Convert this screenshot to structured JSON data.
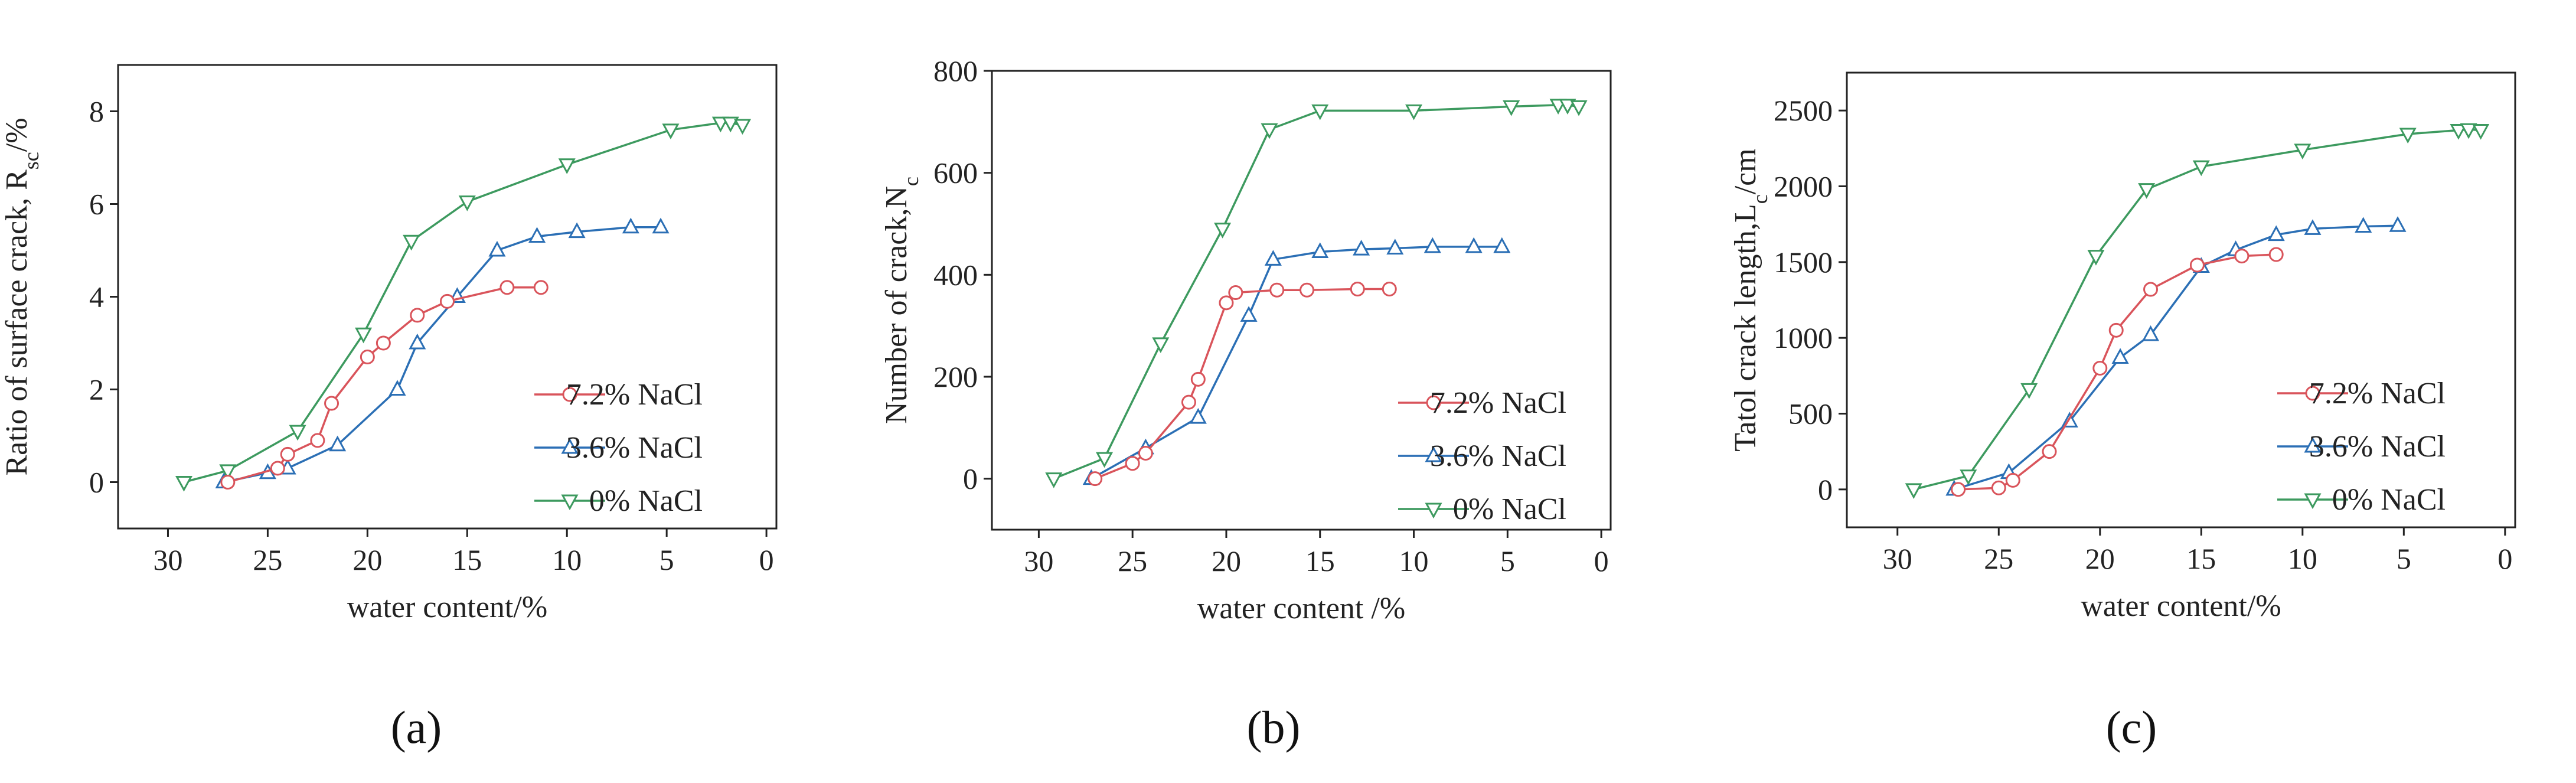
{
  "colors": {
    "red": "#d9545b",
    "blue": "#2b6fb5",
    "green": "#3d9a5f"
  },
  "chart_data": [
    {
      "type": "line",
      "panel_label": "(a)",
      "xlabel": "water content/%",
      "ylabel": "Ratio of surface crack,  R",
      "ylabel_sub": "sc",
      "ylabel_suffix": "/%",
      "xlim": [
        32.5,
        -0.5
      ],
      "ylim": [
        -1,
        9
      ],
      "xticks": [
        30,
        25,
        20,
        15,
        10,
        5,
        0
      ],
      "yticks": [
        0,
        2,
        4,
        6,
        8
      ],
      "legend": "lower-right",
      "series": [
        {
          "name": "7.2% NaCl",
          "color": "red",
          "marker": "circle",
          "x": [
            27,
            24.5,
            24,
            22.5,
            21.8,
            20,
            19.2,
            17.5,
            16,
            13,
            11.3
          ],
          "y": [
            0,
            0.3,
            0.6,
            0.9,
            1.7,
            2.7,
            3.0,
            3.6,
            3.9,
            4.2,
            4.2
          ]
        },
        {
          "name": "3.6% NaCl",
          "color": "blue",
          "marker": "triangle-up",
          "x": [
            27.2,
            25,
            24,
            21.5,
            18.5,
            17.5,
            15.5,
            13.5,
            11.5,
            9.5,
            6.8,
            5.3
          ],
          "y": [
            0,
            0.2,
            0.3,
            0.8,
            2.0,
            3.0,
            4.0,
            5.0,
            5.3,
            5.4,
            5.5,
            5.5
          ]
        },
        {
          "name": "0% NaCl",
          "color": "green",
          "marker": "triangle-down",
          "x": [
            29.2,
            27,
            23.5,
            20.2,
            17.8,
            15,
            10,
            4.8,
            2.3,
            1.8,
            1.2
          ],
          "y": [
            0,
            0.25,
            1.1,
            3.2,
            5.2,
            6.05,
            6.85,
            7.6,
            7.75,
            7.75,
            7.7
          ]
        }
      ]
    },
    {
      "type": "line",
      "panel_label": "(b)",
      "xlabel": "water content /%",
      "ylabel": "Number of crack,N",
      "ylabel_sub": "c",
      "ylabel_suffix": "",
      "xlim": [
        32.5,
        -0.5
      ],
      "ylim": [
        -100,
        800
      ],
      "xticks": [
        30,
        25,
        20,
        15,
        10,
        5,
        0
      ],
      "yticks": [
        0,
        200,
        400,
        600,
        800
      ],
      "legend": "lower-right",
      "series": [
        {
          "name": "7.2% NaCl",
          "color": "red",
          "marker": "circle",
          "x": [
            27,
            25,
            24.3,
            22,
            21.5,
            20,
            19.5,
            17.3,
            15.7,
            13,
            11.3
          ],
          "y": [
            0,
            30,
            50,
            150,
            195,
            345,
            365,
            370,
            370,
            372,
            372
          ]
        },
        {
          "name": "3.6% NaCl",
          "color": "blue",
          "marker": "triangle-up",
          "x": [
            27.2,
            24.3,
            21.5,
            18.8,
            17.5,
            15,
            12.8,
            11,
            9,
            6.8,
            5.3
          ],
          "y": [
            0,
            60,
            120,
            320,
            430,
            445,
            450,
            452,
            455,
            455,
            455
          ]
        },
        {
          "name": "0% NaCl",
          "color": "green",
          "marker": "triangle-down",
          "x": [
            29.2,
            26.5,
            23.5,
            20.2,
            17.7,
            15,
            10,
            4.8,
            2.3,
            1.8,
            1.2
          ],
          "y": [
            0,
            40,
            265,
            490,
            685,
            722,
            722,
            730,
            733,
            733,
            730
          ]
        }
      ]
    },
    {
      "type": "line",
      "panel_label": "(c)",
      "xlabel": "water content/%",
      "ylabel": "Tatol crack length,L",
      "ylabel_sub": "c",
      "ylabel_suffix": "/cm",
      "xlim": [
        32.5,
        -0.5
      ],
      "ylim": [
        -250,
        2750
      ],
      "xticks": [
        30,
        25,
        20,
        15,
        10,
        5,
        0
      ],
      "yticks": [
        0,
        500,
        1000,
        1500,
        2000,
        2500
      ],
      "legend": "lower-right",
      "series": [
        {
          "name": "7.2% NaCl",
          "color": "red",
          "marker": "circle",
          "x": [
            27,
            25,
            24.3,
            22.5,
            20,
            19.2,
            17.5,
            15.2,
            13,
            11.3
          ],
          "y": [
            0,
            10,
            60,
            250,
            800,
            1050,
            1320,
            1480,
            1540,
            1550
          ]
        },
        {
          "name": "3.6% NaCl",
          "color": "blue",
          "marker": "triangle-up",
          "x": [
            27.2,
            24.5,
            21.5,
            19,
            17.5,
            15,
            13.3,
            11.3,
            9.5,
            7,
            5.3
          ],
          "y": [
            0,
            110,
            450,
            870,
            1020,
            1470,
            1580,
            1680,
            1720,
            1735,
            1740
          ]
        },
        {
          "name": "0% NaCl",
          "color": "green",
          "marker": "triangle-down",
          "x": [
            29.2,
            26.5,
            23.5,
            20.2,
            17.7,
            15,
            10,
            4.8,
            2.3,
            1.8,
            1.2
          ],
          "y": [
            0,
            90,
            660,
            1540,
            1980,
            2130,
            2240,
            2345,
            2370,
            2375,
            2370
          ]
        }
      ]
    }
  ]
}
